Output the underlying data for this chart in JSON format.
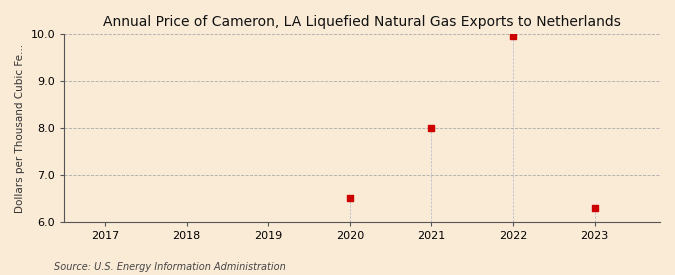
{
  "title": "Annual Price of Cameron, LA Liquefied Natural Gas Exports to Netherlands",
  "ylabel": "Dollars per Thousand Cubic Fe...",
  "source": "Source: U.S. Energy Information Administration",
  "background_color": "#faebd7",
  "plot_bg_color": "#faebd7",
  "x_values": [
    2020,
    2021,
    2022,
    2023
  ],
  "y_values": [
    6.5,
    8.0,
    9.96,
    6.3
  ],
  "marker_color": "#cc0000",
  "marker_size": 4,
  "xlim": [
    2016.5,
    2023.8
  ],
  "ylim": [
    6.0,
    10.0
  ],
  "yticks": [
    6.0,
    7.0,
    8.0,
    9.0,
    10.0
  ],
  "xticks": [
    2017,
    2018,
    2019,
    2020,
    2021,
    2022,
    2023
  ],
  "title_fontsize": 10,
  "axis_fontsize": 7.5,
  "tick_fontsize": 8,
  "source_fontsize": 7
}
